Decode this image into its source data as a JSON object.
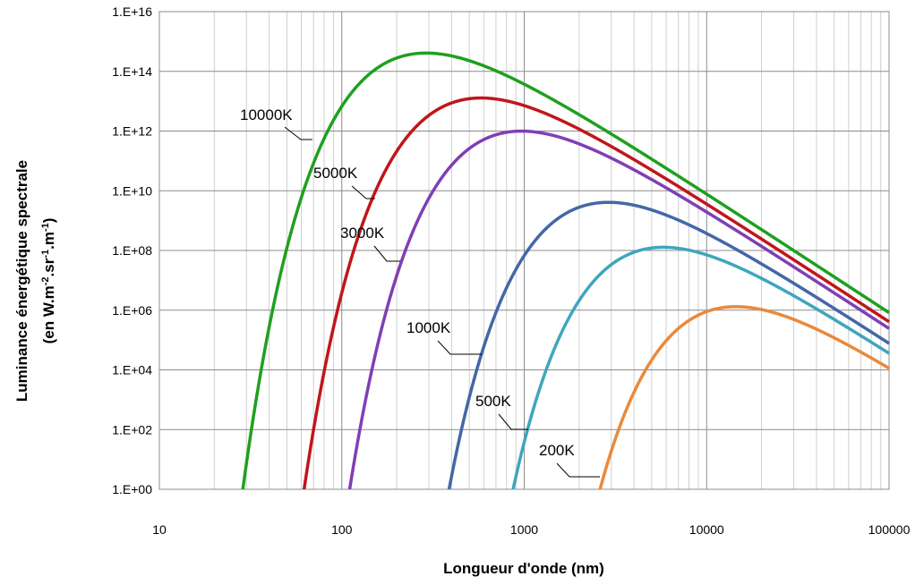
{
  "chart_data": {
    "type": "line",
    "title": "",
    "xlabel": "Longueur d'onde (nm)",
    "ylabel_line1": "Luminance énergétique spectrale",
    "ylabel_line2": "(en W.m-2.sr-1.m-1)",
    "ylabel_unit_parts": [
      "(en W.m",
      "-2",
      ".sr",
      "-1",
      ".m",
      "-1",
      ")"
    ],
    "x_scale": "log",
    "y_scale": "log",
    "xlim": [
      10,
      100000
    ],
    "ylim": [
      1,
      1e+16
    ],
    "grid": true,
    "legend": "none (inline labels)",
    "x_ticks": [
      "10",
      "100",
      "1000",
      "10000",
      "100000"
    ],
    "y_ticks": [
      "1.E+00",
      "1.E+02",
      "1.E+04",
      "1.E+06",
      "1.E+08",
      "1.E+10",
      "1.E+12",
      "1.E+14",
      "1.E+16"
    ],
    "series": [
      {
        "name": "10000K",
        "T": 10000,
        "color": "#1fa01f"
      },
      {
        "name": "5000K",
        "T": 5000,
        "color": "#c0161b"
      },
      {
        "name": "3000K",
        "T": 3000,
        "color": "#7f3fb5"
      },
      {
        "name": "1000K",
        "T": 1000,
        "color": "#4467a6"
      },
      {
        "name": "500K",
        "T": 500,
        "color": "#3ea6bd"
      },
      {
        "name": "200K",
        "T": 200,
        "color": "#e88a3c"
      }
    ]
  }
}
